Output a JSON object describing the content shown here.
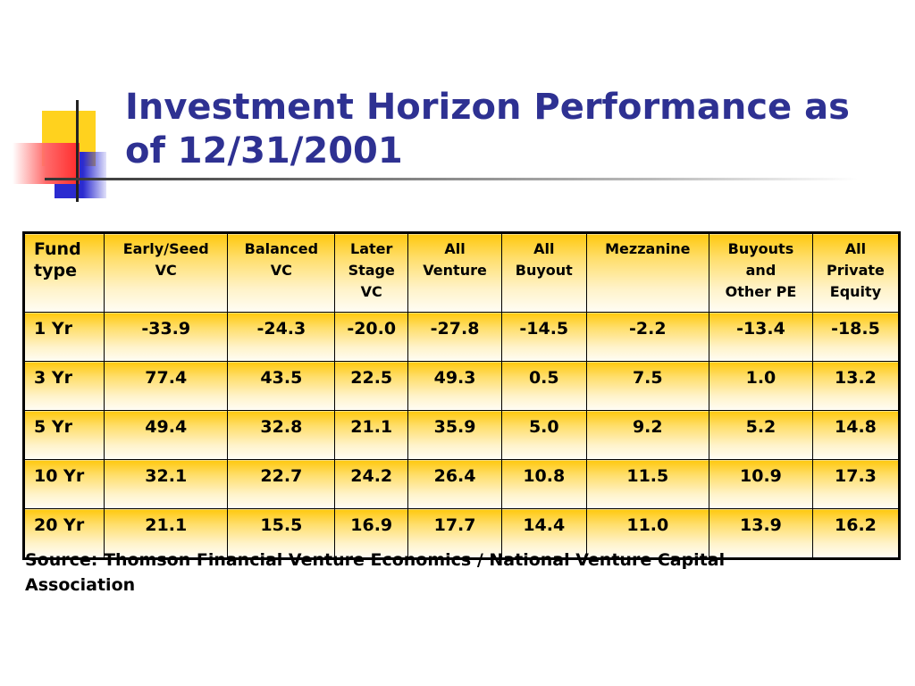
{
  "slide": {
    "title": "Investment Horizon Performance as of 12/31/2001",
    "source": "Source: Thomson Financial Venture Economics / National Venture Capital Association"
  },
  "table": {
    "headers": [
      [
        "Fund",
        "type"
      ],
      [
        "Early/Seed",
        "VC"
      ],
      [
        "Balanced",
        "VC"
      ],
      [
        "Later",
        "Stage",
        "VC"
      ],
      [
        "All",
        "Venture"
      ],
      [
        "All",
        "Buyout"
      ],
      [
        "Mezzanine"
      ],
      [
        "Buyouts",
        "and",
        "Other PE"
      ],
      [
        "All",
        "Private",
        "Equity"
      ]
    ],
    "rows": [
      [
        "1 Yr",
        "-33.9",
        "-24.3",
        "-20.0",
        "-27.8",
        "-14.5",
        "-2.2",
        "-13.4",
        "-18.5"
      ],
      [
        "3 Yr",
        "77.4",
        "43.5",
        "22.5",
        "49.3",
        "0.5",
        "7.5",
        "1.0",
        "13.2"
      ],
      [
        "5 Yr",
        "49.4",
        "32.8",
        "21.1",
        "35.9",
        "5.0",
        "9.2",
        "5.2",
        "14.8"
      ],
      [
        "10 Yr",
        "32.1",
        "22.7",
        "24.2",
        "26.4",
        "10.8",
        "11.5",
        "10.9",
        "17.3"
      ],
      [
        "20 Yr",
        "21.1",
        "15.5",
        "16.9",
        "17.7",
        "14.4",
        "11.0",
        "13.9",
        "16.2"
      ]
    ]
  },
  "colors": {
    "title": "#2e3192",
    "cell_gradient_top": "#ffc90e",
    "cell_gradient_bottom": "#fffdf5",
    "deco_yellow": "#ffd21e",
    "deco_blue": "#2b2bd0",
    "deco_red": "#ff2a2a"
  }
}
